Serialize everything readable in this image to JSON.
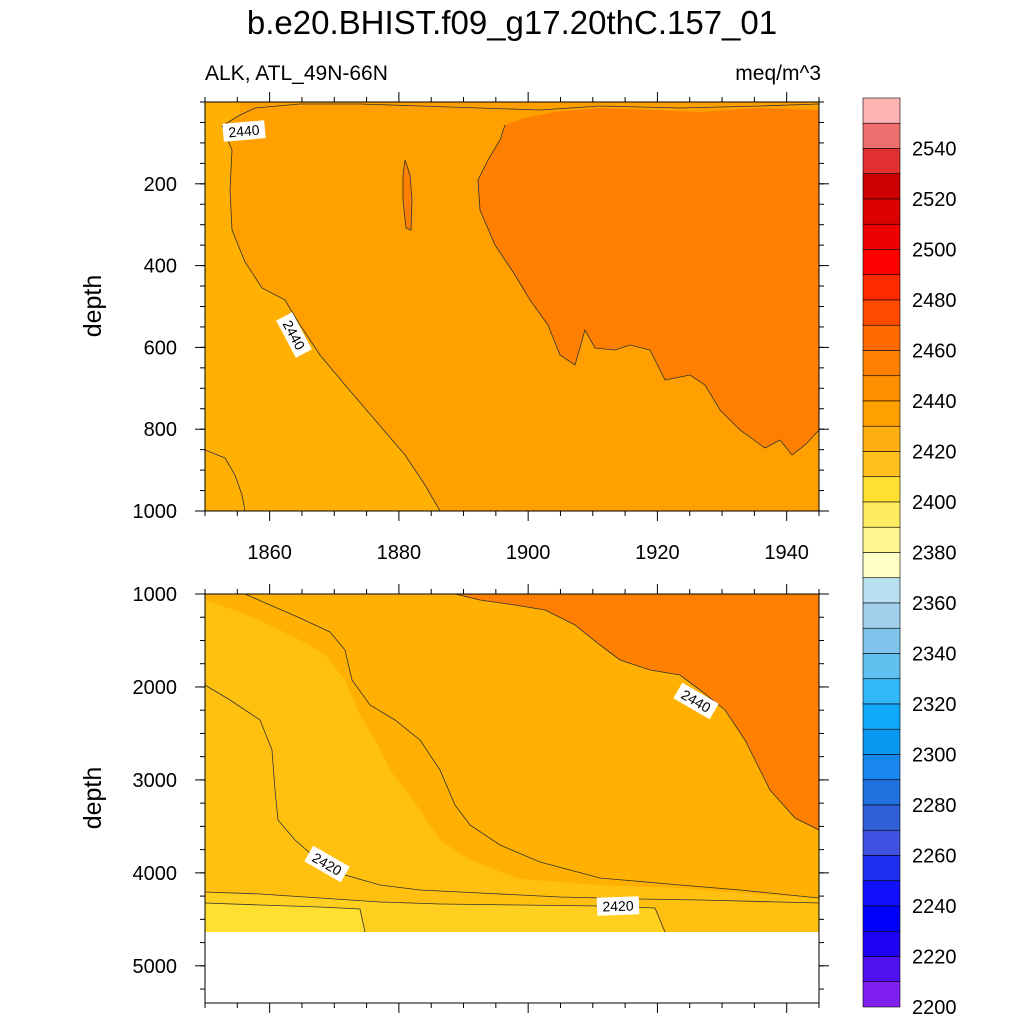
{
  "title": "b.e20.BHIST.f09_g17.20thC.157_01",
  "variable_label": "ALK, ATL_49N-66N",
  "units_label": "meq/m^3",
  "colors": {
    "c2440_2450": "#ffa000",
    "c2450_2460": "#ff8000",
    "c2430_2440": "#ffb000",
    "c2420_2430": "#ffc010",
    "c2410_2420": "#ffd020",
    "c2400_2410": "#ffe030",
    "line": "#333333"
  },
  "chart_data": [
    {
      "type": "contour",
      "panel": "upper",
      "xlabel": "",
      "ylabel": "depth",
      "xlim": [
        1850,
        1945
      ],
      "ylim": [
        1000,
        0
      ],
      "x_ticks": [
        1860,
        1880,
        1900,
        1920,
        1940
      ],
      "x_tick_labels": [
        "1860",
        "1880",
        "1900",
        "1920",
        "1940"
      ],
      "y_ticks": [
        200,
        400,
        600,
        800,
        1000
      ],
      "y_tick_labels": [
        "200",
        "400",
        "600",
        "800",
        "1000"
      ],
      "contour_labels": [
        "2440",
        "2440"
      ],
      "regions": [
        {
          "range": "2430-2440",
          "location": "upper-left corner band near surface and lower-left triangle"
        },
        {
          "range": "2440-2450",
          "location": "broad central region"
        },
        {
          "range": "2450-2460",
          "location": "upper-right, from ~1895 to 1945, deepening to ~850 m"
        }
      ]
    },
    {
      "type": "contour",
      "panel": "lower",
      "xlabel": "",
      "ylabel": "depth",
      "xlim": [
        1850,
        1945
      ],
      "ylim": [
        5400,
        1000
      ],
      "x_ticks": [
        1860,
        1880,
        1900,
        1920,
        1940
      ],
      "y_ticks": [
        1000,
        2000,
        3000,
        4000,
        5000
      ],
      "y_tick_labels": [
        "1000",
        "2000",
        "3000",
        "4000",
        "5000"
      ],
      "data_floor_depth": 4650,
      "contour_labels": [
        "2440",
        "2420",
        "2420"
      ],
      "regions": [
        {
          "range": "2440-2450",
          "location": "upper-right wedge deepening to ~3500 m"
        },
        {
          "range": "2430-2440",
          "location": "central diagonal band"
        },
        {
          "range": "2420-2430",
          "location": "left and lower band above ~4300 m"
        },
        {
          "range": "2410-2420",
          "location": "bottom band ~4200-4650 m"
        },
        {
          "range": "2400-2410",
          "location": "bottom-left patch below ~4400 m"
        }
      ]
    }
  ],
  "colorbar": {
    "ticks": [
      "2540",
      "2520",
      "2500",
      "2480",
      "2460",
      "2440",
      "2420",
      "2400",
      "2380",
      "2360",
      "2340",
      "2320",
      "2300",
      "2280",
      "2260",
      "2240",
      "2220",
      "2200"
    ],
    "colors": [
      "#ffb4b4",
      "#f07070",
      "#e03030",
      "#cc0000",
      "#dd0000",
      "#ee0000",
      "#ff0000",
      "#ff2a00",
      "#ff4a00",
      "#ff6a00",
      "#ff8000",
      "#ff9000",
      "#ffa000",
      "#ffb010",
      "#ffc020",
      "#ffe030",
      "#ffec60",
      "#fff590",
      "#ffffc8",
      "#b8e0f0",
      "#a0d0ec",
      "#80c4ec",
      "#60c0f0",
      "#30b8f8",
      "#10a8f8",
      "#0898f0",
      "#1888f0",
      "#2070e0",
      "#3060d8",
      "#4050e0",
      "#2030f0",
      "#1010ff",
      "#0000ff",
      "#2000f0",
      "#5010f0",
      "#8020f0"
    ]
  }
}
